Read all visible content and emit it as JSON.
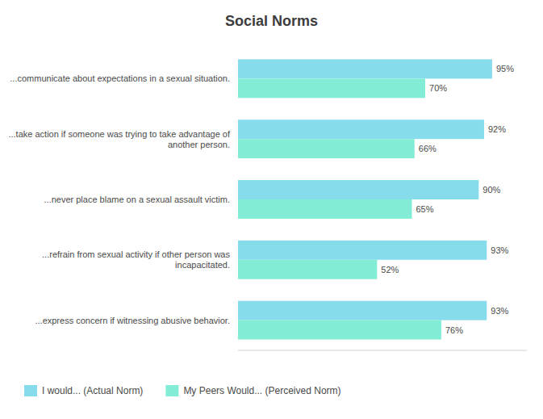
{
  "chart_data": {
    "type": "bar",
    "orientation": "horizontal",
    "title": "Social Norms",
    "categories": [
      "...communicate about expectations in a sexual situation.",
      "...take action if someone was trying to take advantage of\nanother person.",
      "...never place blame on a sexual assault victim.",
      "...refrain from sexual activity if other person was\nincapacitated.",
      "...express concern if witnessing abusive behavior."
    ],
    "series": [
      {
        "name": "I would... (Actual Norm)",
        "color": "#87DCEC",
        "values": [
          95,
          92,
          90,
          93,
          93
        ],
        "value_labels": [
          "95%",
          "92%",
          "90%",
          "93%",
          "93%"
        ]
      },
      {
        "name": "My Peers Would... (Perceived Norm)",
        "color": "#82EDD4",
        "values": [
          70,
          66,
          65,
          52,
          76
        ],
        "value_labels": [
          "70%",
          "66%",
          "65%",
          "52%",
          "76%"
        ]
      }
    ],
    "xlim": [
      0,
      108
    ],
    "xticks": [],
    "tick_labels": false,
    "grid": false,
    "data_labels": true,
    "legend": "bottom"
  }
}
